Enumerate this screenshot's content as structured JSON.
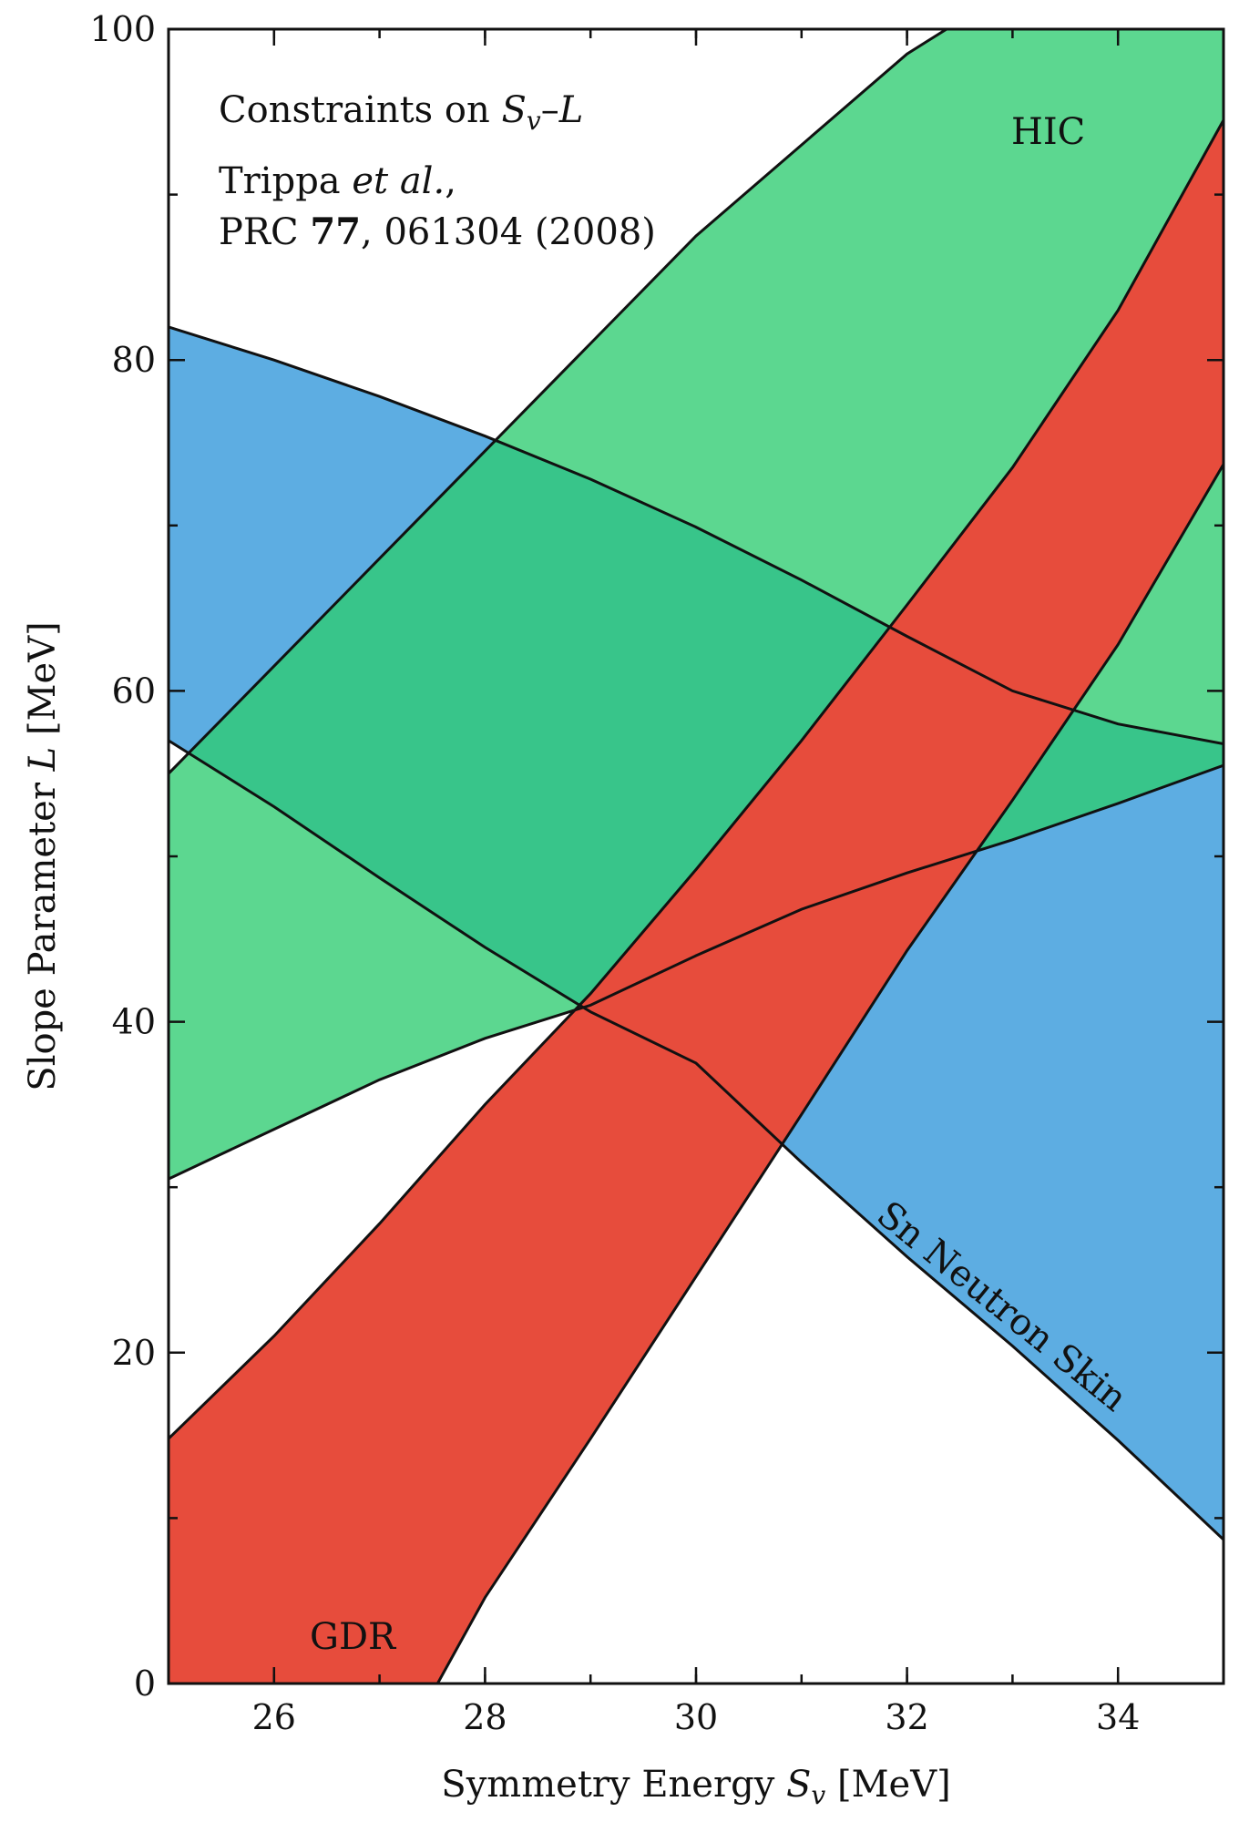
{
  "chart_data": {
    "type": "area",
    "title": "",
    "xlabel": {
      "text": "Symmetry Energy ",
      "symbol": "S",
      "sub": "v",
      "unit": " [MeV]"
    },
    "ylabel": {
      "text": "Slope Parameter ",
      "symbol": "L",
      "unit": " [MeV]"
    },
    "xlim": [
      25,
      35
    ],
    "ylim": [
      0,
      100
    ],
    "xticks": [
      26,
      28,
      30,
      32,
      34
    ],
    "yticks": [
      0,
      20,
      40,
      60,
      80,
      100
    ],
    "xminor": [
      25,
      26,
      27,
      28,
      29,
      30,
      31,
      32,
      33,
      34,
      35
    ],
    "yminor": [
      10,
      30,
      50,
      70,
      90
    ],
    "grid": false,
    "annotation": {
      "line1_prefix": "Constraints on ",
      "line1_S": "S",
      "line1_sub": "v",
      "line1_dash": "–",
      "line1_L": "L",
      "line2_author": "Trippa ",
      "line2_etal": "et al.",
      "line2_comma": ",",
      "line3_journal": "PRC ",
      "line3_volume": "77",
      "line3_rest": ", 061304 (2008)"
    },
    "series": [
      {
        "name": "Sn Neutron Skin",
        "color": "#5DADE2",
        "upper": [
          [
            25,
            82.0
          ],
          [
            26,
            80.0
          ],
          [
            27,
            77.8
          ],
          [
            28,
            75.4
          ],
          [
            29,
            72.8
          ],
          [
            30,
            69.9
          ],
          [
            31,
            66.7
          ],
          [
            32,
            63.3
          ],
          [
            33,
            60.0
          ],
          [
            34,
            58.0
          ],
          [
            35,
            56.8
          ]
        ],
        "lower": [
          [
            25,
            57.0
          ],
          [
            26,
            53.0
          ],
          [
            27,
            48.7
          ],
          [
            28,
            44.5
          ],
          [
            29,
            40.6
          ],
          [
            30,
            37.5
          ],
          [
            31,
            31.5
          ],
          [
            32,
            25.8
          ],
          [
            33,
            20.4
          ],
          [
            34,
            14.7
          ],
          [
            35,
            8.7
          ]
        ]
      },
      {
        "name": "HIC",
        "color": "#2ECC71",
        "upper": [
          [
            25,
            55.0
          ],
          [
            26,
            61.5
          ],
          [
            27,
            68.0
          ],
          [
            28,
            74.5
          ],
          [
            29,
            81.0
          ],
          [
            30,
            87.5
          ],
          [
            31,
            93.0
          ],
          [
            32,
            98.5
          ],
          [
            32.5,
            100.5
          ]
        ],
        "lower": [
          [
            25,
            30.5
          ],
          [
            26,
            33.5
          ],
          [
            27,
            36.5
          ],
          [
            28,
            39.0
          ],
          [
            29,
            41.0
          ],
          [
            30,
            44.0
          ],
          [
            31,
            46.8
          ],
          [
            32,
            49.0
          ],
          [
            33,
            51.0
          ],
          [
            34,
            53.2
          ],
          [
            35,
            55.5
          ]
        ],
        "top_edge": [
          [
            32.5,
            100.5
          ],
          [
            35,
            100.5
          ]
        ]
      },
      {
        "name": "GDR",
        "color": "#E74C3C",
        "upper": [
          [
            25,
            14.8
          ],
          [
            26,
            21.0
          ],
          [
            27,
            27.8
          ],
          [
            28,
            35.0
          ],
          [
            29,
            41.7
          ],
          [
            30,
            49.2
          ],
          [
            31,
            57.0
          ],
          [
            32,
            65.2
          ],
          [
            33,
            73.5
          ],
          [
            34,
            83.0
          ],
          [
            35,
            94.5
          ]
        ],
        "lower": [
          [
            27.55,
            0
          ],
          [
            28,
            5.2
          ],
          [
            29,
            14.8
          ],
          [
            30,
            24.6
          ],
          [
            31,
            34.4
          ],
          [
            32,
            44.3
          ],
          [
            33,
            53.4
          ],
          [
            34,
            62.8
          ],
          [
            35,
            73.7
          ]
        ]
      }
    ]
  }
}
